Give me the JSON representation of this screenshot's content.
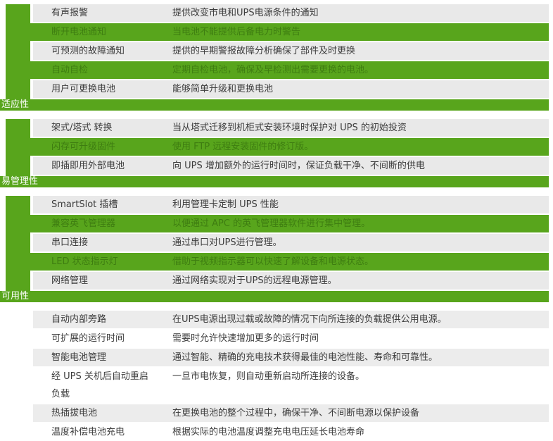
{
  "colors": {
    "accent_green": "#58a51c",
    "highlight_text_green": "#3e7d11",
    "row_gray": "#e9e9e9",
    "row_gray_light": "#ececec",
    "row_white": "#ffffff",
    "text_dark": "#3c3c3c",
    "section_label_white": "#ffffff"
  },
  "sections": [
    {
      "label": "适应性",
      "sidebar": true,
      "rows": [
        {
          "name": "有声报警",
          "desc": "提供改变市电和UPS电源条件的通知",
          "variant": "gray"
        },
        {
          "name": "断开电池通知",
          "desc": "当电池不能提供后备电力时警告",
          "variant": "green"
        },
        {
          "name": "可预测的故障通知",
          "desc": "提供的早期警报故障分析确保了部件及时更换",
          "variant": "gray"
        },
        {
          "name": "自动自检",
          "desc": "定期自检电池，确保及早检测出需要更换的电池。",
          "variant": "green"
        },
        {
          "name": "用户可更换电池",
          "desc": "能够简单升级和更换电池",
          "variant": "gray"
        }
      ]
    },
    {
      "label": "易管理性",
      "sidebar": true,
      "rows": [
        {
          "name": "架式/塔式 转换",
          "desc": "当从塔式迁移到机柜式安装环境时保护对 UPS 的初始投资",
          "variant": "gray"
        },
        {
          "name": "闪存可升级固件",
          "desc": "使用 FTP 远程安装固件的修订版。",
          "variant": "green"
        },
        {
          "name": "即插即用外部电池",
          "desc": "向 UPS 增加额外的运行时间时，保证负载干净、不间断的供电",
          "variant": "gray"
        }
      ]
    },
    {
      "label": "可用性",
      "sidebar": true,
      "rows": [
        {
          "name": "SmartSlot 插槽",
          "desc": "利用管理卡定制 UPS 性能",
          "variant": "gray"
        },
        {
          "name": "兼容英飞管理器",
          "desc": "以便通过 APC 的英飞管理器软件进行集中管理。",
          "variant": "green"
        },
        {
          "name": "串口连接",
          "desc": "通过串口对UPS进行管理。",
          "variant": "gray"
        },
        {
          "name": "LED 状态指示灯",
          "desc": "借助于视频指示器可以快速了解设备和电源状态。",
          "variant": "green"
        },
        {
          "name": "网络管理",
          "desc": "通过网络实现对于UPS的远程电源管理。",
          "variant": "gray"
        }
      ]
    },
    {
      "label": "",
      "sidebar": false,
      "rows": [
        {
          "name": "自动内部旁路",
          "desc": "在UPS电源出现过载或故障的情况下向所连接的负载提供公用电源。",
          "variant": "light"
        },
        {
          "name": "可扩展的运行时间",
          "desc": "需要时允许快速增加更多的运行时间",
          "variant": "white"
        },
        {
          "name": "智能电池管理",
          "desc": "通过智能、精确的充电技术获得最佳的电池性能、寿命和可靠性。",
          "variant": "light"
        },
        {
          "name": "经 UPS 关机后自动重启负载",
          "desc": "一旦市电恢复，则自动重新启动所连接的设备。",
          "variant": "white"
        },
        {
          "name": "热插拔电池",
          "desc": "在更换电池的整个过程中，确保干净、不间断电源以保护设备",
          "variant": "light"
        },
        {
          "name": "温度补偿电池充电",
          "desc": "根据实际的电池温度调整充电电压延长电池寿命",
          "variant": "white"
        }
      ]
    }
  ]
}
